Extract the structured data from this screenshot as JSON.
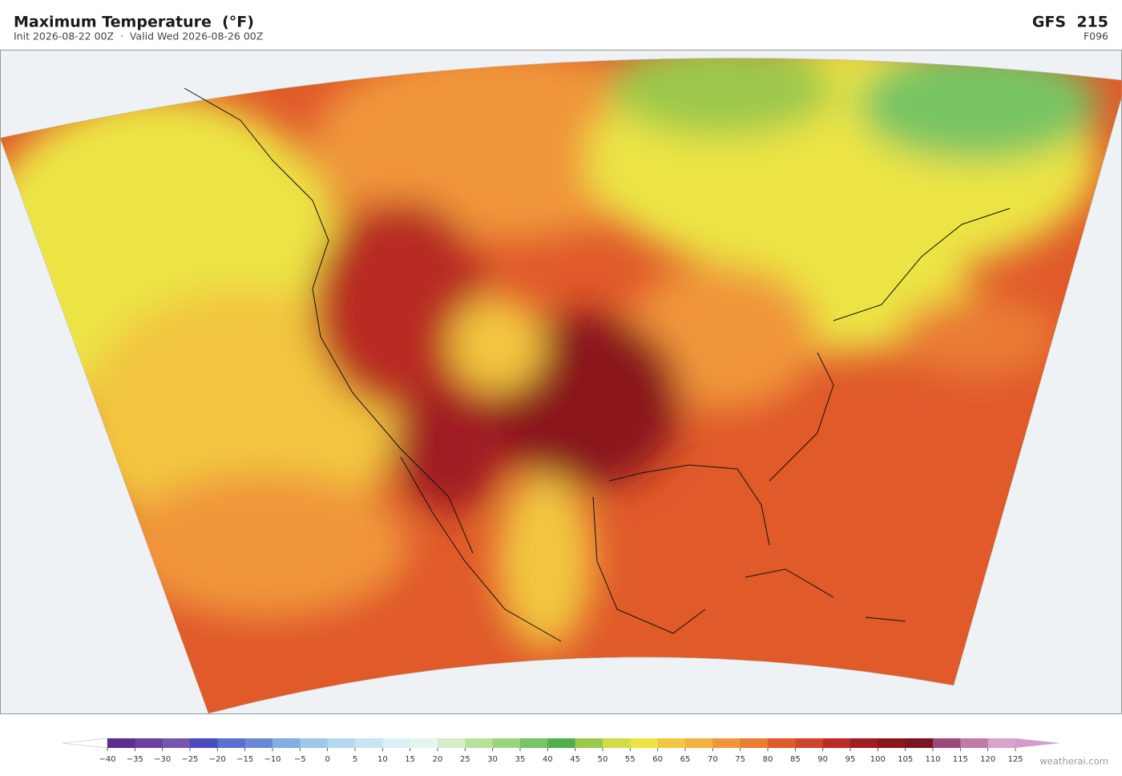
{
  "header": {
    "title": "Maximum Temperature  (°F)",
    "subtitle": "Init 2026-08-22 00Z  ·  Valid Wed 2026-08-26 00Z",
    "model": "GFS  215",
    "forecast_hour": "F096"
  },
  "colorbar": {
    "ticks": [
      {
        "value": -40,
        "label": "−40"
      },
      {
        "value": -35,
        "label": "−35"
      },
      {
        "value": -30,
        "label": "−30"
      },
      {
        "value": -25,
        "label": "−25"
      },
      {
        "value": -20,
        "label": "−20"
      },
      {
        "value": -15,
        "label": "−15"
      },
      {
        "value": -10,
        "label": "−10"
      },
      {
        "value": -5,
        "label": "−5"
      },
      0,
      5,
      10,
      15,
      20,
      25,
      30,
      35,
      40,
      45,
      50,
      55,
      60,
      65,
      70,
      75,
      80,
      85,
      90,
      95,
      100,
      105,
      110,
      115,
      120,
      125
    ],
    "colors": [
      "#5b2d8e",
      "#6a3fa0",
      "#7455b0",
      "#4b4bc0",
      "#5a6fd0",
      "#6a8ad8",
      "#82aee0",
      "#9ec8e8",
      "#b4d8ee",
      "#c8e6f2",
      "#daf0f4",
      "#e6f4ee",
      "#d4ecc8",
      "#b8e29a",
      "#9cd47e",
      "#78c464",
      "#52b04c",
      "#9cc84c",
      "#d0dc48",
      "#ece444",
      "#f2c640",
      "#f4b03e",
      "#f0963a",
      "#ea7c34",
      "#e05a2a",
      "#d0442a",
      "#b82c24",
      "#a01e20",
      "#8a161c",
      "#7a1420",
      "#9a4a7a",
      "#c07aaa",
      "#d8a2cc"
    ],
    "under_color": "#ffffff",
    "over_color": "#d49ccc"
  },
  "watermark": "weatherai.com"
}
